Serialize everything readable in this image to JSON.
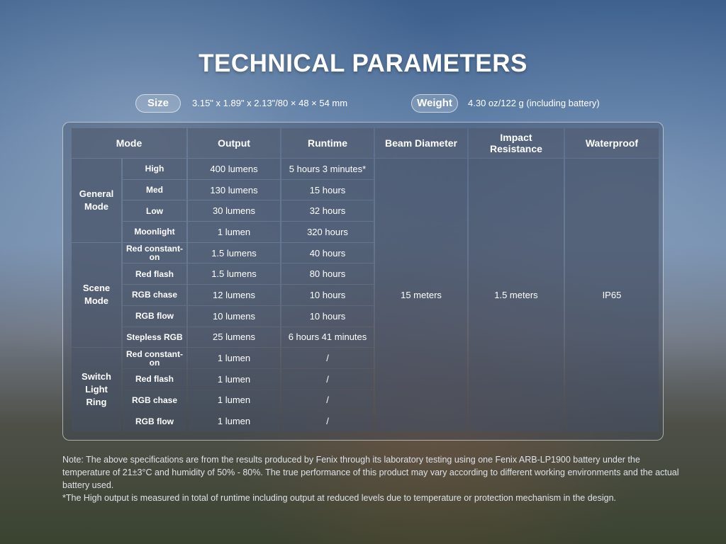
{
  "title": "TECHNICAL PARAMETERS",
  "size": {
    "label": "Size",
    "value": "3.15\" x 1.89\" x 2.13\"/80 × 48 × 54 mm"
  },
  "weight": {
    "label": "Weight",
    "value": "4.30 oz/122 g (including battery)"
  },
  "headers": [
    "Mode",
    "Output",
    "Runtime",
    "Beam Diameter",
    "Impact Resistance",
    "Waterproof"
  ],
  "groups": [
    "General Mode",
    "Scene Mode",
    "Switch Light Ring"
  ],
  "rows": [
    {
      "mode": "High",
      "output": "400 lumens",
      "runtime": "5 hours 3 minutes*"
    },
    {
      "mode": "Med",
      "output": "130 lumens",
      "runtime": "15 hours"
    },
    {
      "mode": "Low",
      "output": "30 lumens",
      "runtime": "32 hours"
    },
    {
      "mode": "Moonlight",
      "output": "1 lumen",
      "runtime": "320 hours"
    },
    {
      "mode": "Red constant-on",
      "output": "1.5 lumens",
      "runtime": "40 hours"
    },
    {
      "mode": "Red flash",
      "output": "1.5 lumens",
      "runtime": "80 hours"
    },
    {
      "mode": "RGB chase",
      "output": "12 lumens",
      "runtime": "10 hours"
    },
    {
      "mode": "RGB flow",
      "output": "10 lumens",
      "runtime": "10 hours"
    },
    {
      "mode": "Stepless RGB",
      "output": "25 lumens",
      "runtime": "6 hours 41 minutes"
    },
    {
      "mode": "Red constant-on",
      "output": "1 lumen",
      "runtime": "/"
    },
    {
      "mode": "Red flash",
      "output": "1 lumen",
      "runtime": "/"
    },
    {
      "mode": "RGB chase",
      "output": "1 lumen",
      "runtime": "/"
    },
    {
      "mode": "RGB flow",
      "output": "1 lumen",
      "runtime": "/"
    }
  ],
  "shared": {
    "beam": "15 meters",
    "impact": "1.5 meters",
    "waterproof": "IP65"
  },
  "notes": [
    "Note: The above specifications are from the results produced by Fenix through its laboratory testing using one Fenix ARB-LP1900 battery under the temperature of 21±3°C and humidity of 50% - 80%. The true performance of this product may vary according to different working environments and the actual battery used.",
    "*The High output is measured in total of runtime including output at reduced levels due to temperature or protection mechanism in the design."
  ]
}
